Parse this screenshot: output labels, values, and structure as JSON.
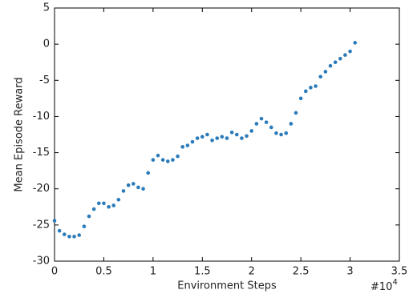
{
  "chart_data": {
    "type": "scatter",
    "xlabel": "Environment Steps",
    "ylabel": "Mean Episode Reward",
    "x_multiplier": {
      "base": "#10",
      "exponent": "4"
    },
    "color": "#2b7bba",
    "xlim": [
      0,
      3.5
    ],
    "xticks": [
      0,
      0.5,
      1,
      1.5,
      2,
      2.5,
      3,
      3.5
    ],
    "ylim": [
      -30,
      5
    ],
    "yticks": [
      -30,
      -25,
      -20,
      -15,
      -10,
      -5,
      0,
      5
    ],
    "x": [
      0.0,
      0.05,
      0.1,
      0.15,
      0.2,
      0.25,
      0.3,
      0.35,
      0.4,
      0.45,
      0.5,
      0.55,
      0.6,
      0.65,
      0.7,
      0.75,
      0.8,
      0.85,
      0.9,
      0.95,
      1.0,
      1.05,
      1.1,
      1.15,
      1.2,
      1.25,
      1.3,
      1.35,
      1.4,
      1.45,
      1.5,
      1.55,
      1.6,
      1.65,
      1.7,
      1.75,
      1.8,
      1.85,
      1.9,
      1.95,
      2.0,
      2.05,
      2.1,
      2.15,
      2.2,
      2.25,
      2.3,
      2.35,
      2.4,
      2.45,
      2.5,
      2.55,
      2.6,
      2.65,
      2.7,
      2.75,
      2.8,
      2.85,
      2.9,
      2.95,
      3.0,
      3.05
    ],
    "values": [
      -24.4,
      -25.8,
      -26.3,
      -26.6,
      -26.6,
      -26.4,
      -25.2,
      -23.8,
      -22.8,
      -22.0,
      -22.0,
      -22.5,
      -22.3,
      -21.5,
      -20.3,
      -19.5,
      -19.3,
      -19.8,
      -20.0,
      -17.8,
      -16.0,
      -15.4,
      -16.0,
      -16.2,
      -16.0,
      -15.5,
      -14.2,
      -14.0,
      -13.5,
      -13.0,
      -12.8,
      -12.5,
      -13.3,
      -13.0,
      -12.8,
      -13.0,
      -12.2,
      -12.5,
      -13.0,
      -12.7,
      -12.0,
      -11.0,
      -10.3,
      -10.8,
      -11.5,
      -12.3,
      -12.5,
      -12.3,
      -11.0,
      -9.5,
      -7.5,
      -6.5,
      -6.0,
      -5.8,
      -4.5,
      -3.8,
      -3.0,
      -2.5,
      -2.0,
      -1.5,
      -1.0,
      0.2
    ]
  }
}
